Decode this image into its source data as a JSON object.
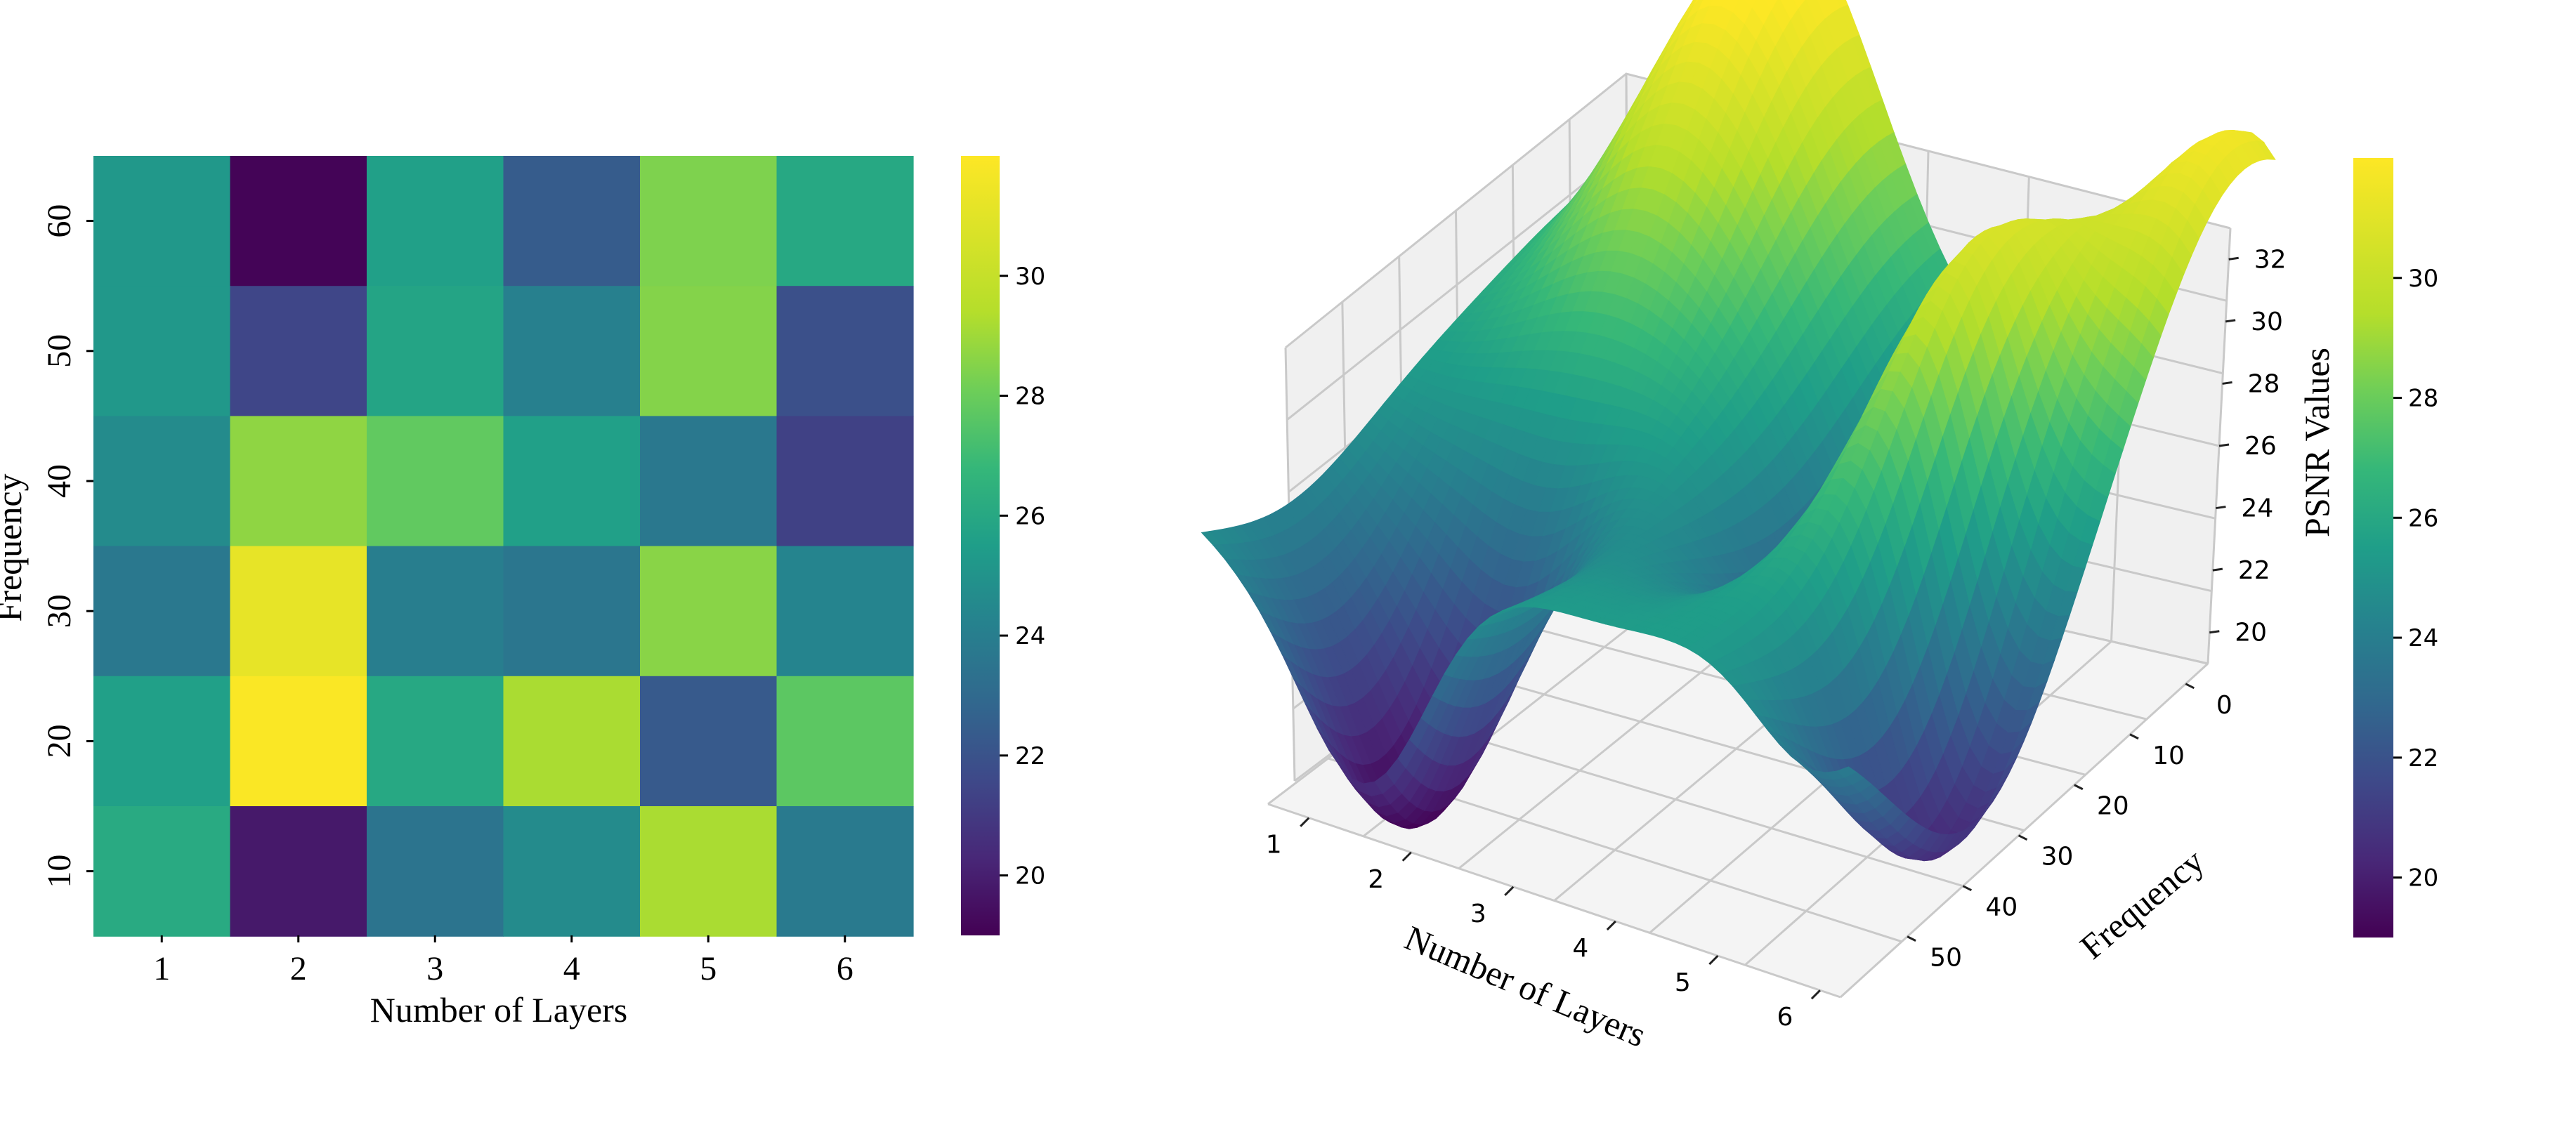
{
  "chart_data": [
    {
      "type": "heatmap",
      "title": "",
      "xlabel": "Number of Layers",
      "ylabel": "Frequency",
      "x_categories": [
        "1",
        "2",
        "3",
        "4",
        "5",
        "6"
      ],
      "y_categories": [
        "60",
        "50",
        "40",
        "30",
        "20",
        "10"
      ],
      "values": [
        [
          25.2,
          19.1,
          25.6,
          22.4,
          28.4,
          26.0
        ],
        [
          25.2,
          21.5,
          25.8,
          24.1,
          28.5,
          21.9
        ],
        [
          24.6,
          28.7,
          27.8,
          25.6,
          23.7,
          21.3
        ],
        [
          23.7,
          31.2,
          24.0,
          23.6,
          28.6,
          24.3
        ],
        [
          25.6,
          31.9,
          26.0,
          29.2,
          22.3,
          27.7
        ],
        [
          26.1,
          19.8,
          23.5,
          24.6,
          29.2,
          23.8
        ]
      ],
      "colorscale": "viridis",
      "colorbar": {
        "range": [
          19,
          32
        ],
        "ticks": [
          "20",
          "22",
          "24",
          "26",
          "28",
          "30"
        ]
      }
    },
    {
      "type": "surface",
      "title": "",
      "xlabel": "Number of Layers",
      "ylabel": "Frequency",
      "zlabel": "PSNR Values",
      "x_ticks": [
        "1",
        "2",
        "3",
        "4",
        "5",
        "6"
      ],
      "y_ticks": [
        "0",
        "10",
        "20",
        "30",
        "40",
        "50"
      ],
      "z_ticks": [
        "20",
        "22",
        "24",
        "26",
        "28",
        "30",
        "32"
      ],
      "xlim": [
        0.6,
        6.2
      ],
      "ylim": [
        62,
        -4
      ],
      "zlim": [
        19,
        33
      ],
      "surface_model": {
        "base": 25.5,
        "terms": [
          {
            "x": 2.0,
            "y": 60,
            "amp": 7.5,
            "sx": 0.75,
            "sy": 16
          },
          {
            "x": 2.0,
            "y": 5,
            "amp": -6.5,
            "sx": 0.55,
            "sy": 12
          },
          {
            "x": 4.0,
            "y": 35,
            "amp": -3.5,
            "sx": 0.5,
            "sy": 15
          },
          {
            "x": 5.0,
            "y": 35,
            "amp": 5.5,
            "sx": 0.45,
            "sy": 14
          },
          {
            "x": 5.9,
            "y": 15,
            "amp": -5.5,
            "sx": 0.5,
            "sy": 13
          },
          {
            "x": 6.0,
            "y": 58,
            "amp": 6.0,
            "sx": 0.55,
            "sy": 14
          },
          {
            "x": 1.0,
            "y": 10,
            "amp": -1.5,
            "sx": 0.5,
            "sy": 12
          }
        ]
      },
      "colorscale": "viridis",
      "colorbar": {
        "range": [
          19,
          32
        ],
        "ticks": [
          "20",
          "22",
          "24",
          "26",
          "28",
          "30"
        ]
      }
    }
  ]
}
